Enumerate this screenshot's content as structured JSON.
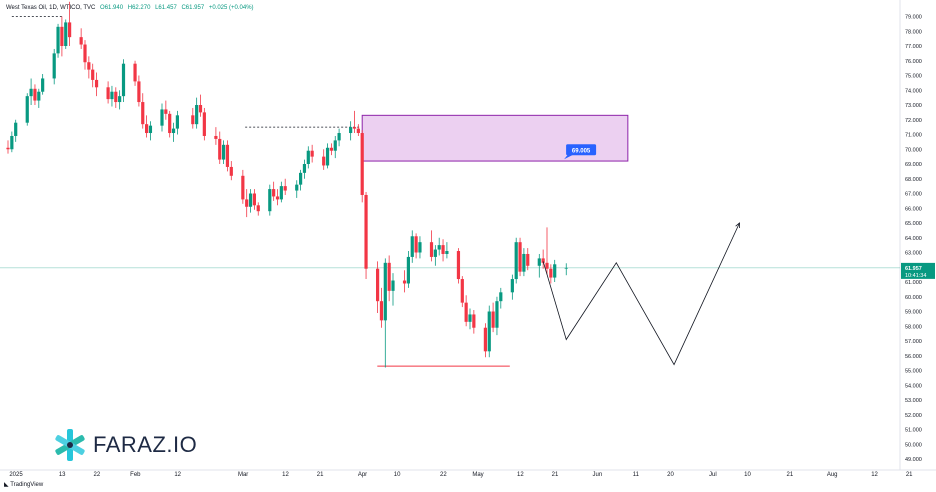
{
  "header": {
    "symbol": "West Texas Oil, 1D, WTICO, TVC",
    "open": "O61.940",
    "high": "H62.270",
    "low": "L61.457",
    "close": "C61.957",
    "change": "+0.025 (+0.04%)"
  },
  "price_axis": {
    "current_price": "61.957",
    "countdown": "10:41:34",
    "zone_label": "69.005"
  },
  "branding": {
    "logo_text": "FARAZ.IO",
    "tradingview": "TradingView"
  },
  "colors": {
    "up": "#089981",
    "down": "#f23645",
    "zone_fill": "#e9c8ef",
    "zone_border": "#8e24aa",
    "label_blue": "#2962ff"
  },
  "chart_data": {
    "type": "candlestick",
    "ylim": [
      48.5,
      79.5
    ],
    "y_ticks": [
      "49.000",
      "50.000",
      "51.000",
      "52.000",
      "53.000",
      "54.000",
      "55.000",
      "56.000",
      "57.000",
      "58.000",
      "59.000",
      "60.000",
      "61.000",
      "62.000",
      "63.000",
      "64.000",
      "65.000",
      "66.000",
      "67.000",
      "68.000",
      "69.000",
      "70.000",
      "71.000",
      "72.000",
      "73.000",
      "74.000",
      "75.000",
      "76.000",
      "77.000",
      "78.000",
      "79.000"
    ],
    "x_labels": [
      {
        "label": "2025",
        "day": 0
      },
      {
        "label": "13",
        "day": 12
      },
      {
        "label": "22",
        "day": 21
      },
      {
        "label": "Feb",
        "day": 31
      },
      {
        "label": "12",
        "day": 42
      },
      {
        "label": "Mar",
        "day": 59
      },
      {
        "label": "12",
        "day": 70
      },
      {
        "label": "21",
        "day": 79
      },
      {
        "label": "Apr",
        "day": 90
      },
      {
        "label": "10",
        "day": 99
      },
      {
        "label": "22",
        "day": 111
      },
      {
        "label": "May",
        "day": 120
      },
      {
        "label": "12",
        "day": 131
      },
      {
        "label": "21",
        "day": 140
      },
      {
        "label": "Jun",
        "day": 151
      },
      {
        "label": "11",
        "day": 161
      },
      {
        "label": "20",
        "day": 170
      },
      {
        "label": "Jul",
        "day": 181
      },
      {
        "label": "10",
        "day": 190
      },
      {
        "label": "21",
        "day": 201
      },
      {
        "label": "Aug",
        "day": 212
      },
      {
        "label": "12",
        "day": 223
      },
      {
        "label": "21",
        "day": 232
      }
    ],
    "candles": [
      {
        "day": 0,
        "o": 70.1,
        "h": 70.6,
        "l": 69.7,
        "c": 70.0
      },
      {
        "day": 1,
        "o": 70.0,
        "h": 71.2,
        "l": 69.8,
        "c": 70.9
      },
      {
        "day": 2,
        "o": 70.9,
        "h": 72.0,
        "l": 70.5,
        "c": 71.8
      },
      {
        "day": 5,
        "o": 71.8,
        "h": 73.8,
        "l": 71.6,
        "c": 73.6
      },
      {
        "day": 6,
        "o": 73.6,
        "h": 74.8,
        "l": 73.0,
        "c": 74.1
      },
      {
        "day": 7,
        "o": 74.1,
        "h": 74.4,
        "l": 73.0,
        "c": 73.3
      },
      {
        "day": 8,
        "o": 73.3,
        "h": 74.1,
        "l": 72.8,
        "c": 73.9
      },
      {
        "day": 9,
        "o": 73.9,
        "h": 75.1,
        "l": 73.7,
        "c": 74.8
      },
      {
        "day": 12,
        "o": 74.8,
        "h": 76.8,
        "l": 74.4,
        "c": 76.5
      },
      {
        "day": 13,
        "o": 76.5,
        "h": 78.5,
        "l": 76.2,
        "c": 78.3
      },
      {
        "day": 14,
        "o": 78.3,
        "h": 79.0,
        "l": 76.3,
        "c": 77.0
      },
      {
        "day": 15,
        "o": 77.0,
        "h": 78.8,
        "l": 76.8,
        "c": 78.6
      },
      {
        "day": 16,
        "o": 78.6,
        "h": 80.0,
        "l": 77.0,
        "c": 77.6
      },
      {
        "day": 19,
        "o": 77.6,
        "h": 78.2,
        "l": 76.8,
        "c": 77.1
      },
      {
        "day": 20,
        "o": 77.1,
        "h": 77.4,
        "l": 75.4,
        "c": 75.9
      },
      {
        "day": 21,
        "o": 75.9,
        "h": 76.3,
        "l": 74.8,
        "c": 75.4
      },
      {
        "day": 22,
        "o": 75.4,
        "h": 75.8,
        "l": 74.2,
        "c": 74.7
      },
      {
        "day": 23,
        "o": 74.7,
        "h": 75.2,
        "l": 73.6,
        "c": 74.2
      },
      {
        "day": 26,
        "o": 74.2,
        "h": 74.6,
        "l": 73.1,
        "c": 73.4
      },
      {
        "day": 27,
        "o": 73.4,
        "h": 74.3,
        "l": 72.9,
        "c": 73.9
      },
      {
        "day": 28,
        "o": 73.9,
        "h": 74.2,
        "l": 72.8,
        "c": 73.2
      },
      {
        "day": 29,
        "o": 73.2,
        "h": 74.0,
        "l": 72.7,
        "c": 73.6
      },
      {
        "day": 30,
        "o": 73.6,
        "h": 76.1,
        "l": 73.2,
        "c": 75.8
      },
      {
        "day": 33,
        "o": 75.8,
        "h": 76.0,
        "l": 74.3,
        "c": 74.6
      },
      {
        "day": 34,
        "o": 74.6,
        "h": 75.0,
        "l": 72.9,
        "c": 73.2
      },
      {
        "day": 35,
        "o": 73.2,
        "h": 73.8,
        "l": 71.4,
        "c": 71.7
      },
      {
        "day": 36,
        "o": 71.7,
        "h": 72.3,
        "l": 70.8,
        "c": 71.1
      },
      {
        "day": 37,
        "o": 71.1,
        "h": 71.9,
        "l": 70.6,
        "c": 71.6
      },
      {
        "day": 40,
        "o": 71.6,
        "h": 73.1,
        "l": 71.2,
        "c": 72.7
      },
      {
        "day": 41,
        "o": 72.7,
        "h": 73.3,
        "l": 72.0,
        "c": 72.4
      },
      {
        "day": 42,
        "o": 72.4,
        "h": 72.6,
        "l": 70.8,
        "c": 71.1
      },
      {
        "day": 43,
        "o": 71.1,
        "h": 71.8,
        "l": 70.5,
        "c": 71.4
      },
      {
        "day": 44,
        "o": 71.4,
        "h": 72.6,
        "l": 71.0,
        "c": 72.3
      },
      {
        "day": 48,
        "o": 72.3,
        "h": 72.8,
        "l": 71.4,
        "c": 71.7
      },
      {
        "day": 49,
        "o": 71.7,
        "h": 73.5,
        "l": 71.4,
        "c": 73.0
      },
      {
        "day": 50,
        "o": 73.0,
        "h": 73.7,
        "l": 72.2,
        "c": 72.5
      },
      {
        "day": 51,
        "o": 72.5,
        "h": 72.8,
        "l": 70.6,
        "c": 70.9
      },
      {
        "day": 54,
        "o": 70.9,
        "h": 71.5,
        "l": 70.3,
        "c": 70.7
      },
      {
        "day": 55,
        "o": 70.7,
        "h": 71.2,
        "l": 69.0,
        "c": 69.3
      },
      {
        "day": 56,
        "o": 69.3,
        "h": 70.6,
        "l": 69.0,
        "c": 70.3
      },
      {
        "day": 57,
        "o": 70.3,
        "h": 70.6,
        "l": 68.5,
        "c": 68.8
      },
      {
        "day": 58,
        "o": 68.8,
        "h": 69.2,
        "l": 67.9,
        "c": 68.2
      },
      {
        "day": 61,
        "o": 68.2,
        "h": 68.6,
        "l": 66.3,
        "c": 66.6
      },
      {
        "day": 62,
        "o": 66.6,
        "h": 67.3,
        "l": 65.4,
        "c": 66.1
      },
      {
        "day": 63,
        "o": 66.1,
        "h": 67.3,
        "l": 65.7,
        "c": 67.0
      },
      {
        "day": 64,
        "o": 67.0,
        "h": 67.3,
        "l": 65.9,
        "c": 66.2
      },
      {
        "day": 65,
        "o": 66.2,
        "h": 66.4,
        "l": 65.5,
        "c": 65.8
      },
      {
        "day": 68,
        "o": 65.8,
        "h": 67.6,
        "l": 65.5,
        "c": 67.3
      },
      {
        "day": 69,
        "o": 67.3,
        "h": 67.8,
        "l": 66.5,
        "c": 66.8
      },
      {
        "day": 70,
        "o": 66.8,
        "h": 67.3,
        "l": 66.2,
        "c": 66.6
      },
      {
        "day": 71,
        "o": 66.6,
        "h": 67.8,
        "l": 66.4,
        "c": 67.5
      },
      {
        "day": 72,
        "o": 67.5,
        "h": 68.0,
        "l": 66.9,
        "c": 67.2
      },
      {
        "day": 75,
        "o": 67.2,
        "h": 67.9,
        "l": 66.7,
        "c": 67.6
      },
      {
        "day": 76,
        "o": 67.6,
        "h": 68.6,
        "l": 67.2,
        "c": 68.4
      },
      {
        "day": 77,
        "o": 68.4,
        "h": 69.3,
        "l": 68.0,
        "c": 69.0
      },
      {
        "day": 78,
        "o": 69.0,
        "h": 70.2,
        "l": 68.7,
        "c": 69.9
      },
      {
        "day": 79,
        "o": 69.9,
        "h": 70.3,
        "l": 69.1,
        "c": 69.5
      },
      {
        "day": 82,
        "o": 69.5,
        "h": 70.0,
        "l": 68.6,
        "c": 68.9
      },
      {
        "day": 83,
        "o": 68.9,
        "h": 70.4,
        "l": 68.7,
        "c": 70.1
      },
      {
        "day": 84,
        "o": 70.1,
        "h": 70.4,
        "l": 69.6,
        "c": 69.9
      },
      {
        "day": 85,
        "o": 69.9,
        "h": 70.9,
        "l": 69.4,
        "c": 70.6
      },
      {
        "day": 86,
        "o": 70.6,
        "h": 71.4,
        "l": 70.2,
        "c": 71.1
      },
      {
        "day": 89,
        "o": 71.1,
        "h": 71.9,
        "l": 70.6,
        "c": 71.5
      },
      {
        "day": 90,
        "o": 71.5,
        "h": 72.6,
        "l": 71.1,
        "c": 71.4
      },
      {
        "day": 91,
        "o": 71.4,
        "h": 71.7,
        "l": 70.9,
        "c": 71.1
      },
      {
        "day": 92,
        "o": 71.1,
        "h": 71.3,
        "l": 66.4,
        "c": 66.9
      },
      {
        "day": 93,
        "o": 66.9,
        "h": 67.1,
        "l": 61.2,
        "c": 61.9
      },
      {
        "day": 96,
        "o": 61.9,
        "h": 62.4,
        "l": 58.9,
        "c": 59.7
      },
      {
        "day": 97,
        "o": 59.7,
        "h": 60.6,
        "l": 57.9,
        "c": 58.4
      },
      {
        "day": 98,
        "o": 58.4,
        "h": 62.6,
        "l": 55.2,
        "c": 62.3
      },
      {
        "day": 99,
        "o": 62.3,
        "h": 62.8,
        "l": 59.7,
        "c": 60.4
      },
      {
        "day": 100,
        "o": 60.4,
        "h": 61.6,
        "l": 59.4,
        "c": 61.1
      },
      {
        "day": 103,
        "o": 61.1,
        "h": 61.8,
        "l": 60.3,
        "c": 60.9
      },
      {
        "day": 104,
        "o": 60.9,
        "h": 63.1,
        "l": 60.6,
        "c": 62.7
      },
      {
        "day": 105,
        "o": 62.7,
        "h": 64.5,
        "l": 62.3,
        "c": 64.1
      },
      {
        "day": 106,
        "o": 64.1,
        "h": 64.3,
        "l": 62.6,
        "c": 63.0
      },
      {
        "day": 107,
        "o": 63.0,
        "h": 64.1,
        "l": 62.6,
        "c": 63.7
      },
      {
        "day": 110,
        "o": 63.7,
        "h": 64.5,
        "l": 62.4,
        "c": 62.7
      },
      {
        "day": 111,
        "o": 62.7,
        "h": 63.5,
        "l": 62.1,
        "c": 63.2
      },
      {
        "day": 112,
        "o": 63.2,
        "h": 64.0,
        "l": 62.8,
        "c": 63.5
      },
      {
        "day": 113,
        "o": 63.5,
        "h": 63.9,
        "l": 62.4,
        "c": 62.9
      },
      {
        "day": 114,
        "o": 62.9,
        "h": 63.7,
        "l": 62.6,
        "c": 63.1
      },
      {
        "day": 117,
        "o": 63.1,
        "h": 63.3,
        "l": 60.9,
        "c": 61.2
      },
      {
        "day": 118,
        "o": 61.2,
        "h": 61.4,
        "l": 59.3,
        "c": 59.6
      },
      {
        "day": 119,
        "o": 59.6,
        "h": 60.1,
        "l": 58.0,
        "c": 58.3
      },
      {
        "day": 120,
        "o": 58.3,
        "h": 59.2,
        "l": 57.8,
        "c": 58.8
      },
      {
        "day": 121,
        "o": 58.8,
        "h": 59.1,
        "l": 57.5,
        "c": 57.9
      },
      {
        "day": 124,
        "o": 57.9,
        "h": 58.2,
        "l": 55.9,
        "c": 56.3
      },
      {
        "day": 125,
        "o": 56.3,
        "h": 59.4,
        "l": 55.9,
        "c": 59.0
      },
      {
        "day": 126,
        "o": 59.0,
        "h": 59.6,
        "l": 57.6,
        "c": 57.9
      },
      {
        "day": 127,
        "o": 57.9,
        "h": 60.0,
        "l": 57.4,
        "c": 59.7
      },
      {
        "day": 128,
        "o": 59.7,
        "h": 60.6,
        "l": 59.2,
        "c": 60.3
      },
      {
        "day": 131,
        "o": 60.3,
        "h": 61.5,
        "l": 59.8,
        "c": 61.2
      },
      {
        "day": 132,
        "o": 61.2,
        "h": 64.0,
        "l": 60.9,
        "c": 63.7
      },
      {
        "day": 133,
        "o": 63.7,
        "h": 64.0,
        "l": 61.4,
        "c": 61.7
      },
      {
        "day": 134,
        "o": 61.7,
        "h": 63.3,
        "l": 61.4,
        "c": 62.9
      },
      {
        "day": 135,
        "o": 62.9,
        "h": 63.3,
        "l": 61.8,
        "c": 62.1
      },
      {
        "day": 138,
        "o": 62.1,
        "h": 62.9,
        "l": 61.3,
        "c": 62.6
      },
      {
        "day": 139,
        "o": 62.6,
        "h": 63.2,
        "l": 61.9,
        "c": 62.3
      },
      {
        "day": 140,
        "o": 62.3,
        "h": 64.7,
        "l": 61.5,
        "c": 61.9
      },
      {
        "day": 141,
        "o": 61.9,
        "h": 62.2,
        "l": 60.9,
        "c": 61.3
      },
      {
        "day": 142,
        "o": 61.3,
        "h": 62.5,
        "l": 61.0,
        "c": 62.2
      },
      {
        "day": 145,
        "o": 61.94,
        "h": 62.27,
        "l": 61.46,
        "c": 61.96
      }
    ],
    "annotations": {
      "supply_zone": {
        "day_start": 92,
        "day_end": 161,
        "price_low": 69.2,
        "price_high": 72.3,
        "label": "69.005",
        "label_day": 146
      },
      "dashed_line": {
        "price": 71.5,
        "day_start": 59,
        "day_end": 90
      },
      "top_dashed_line": {
        "price": 79.0,
        "day_start": 1,
        "day_end": 14
      },
      "low_line": {
        "price": 55.3,
        "day_start": 98,
        "day_end": 128
      },
      "projection": [
        {
          "day": 139,
          "price": 62.4
        },
        {
          "day": 145,
          "price": 57.1
        },
        {
          "day": 158,
          "price": 62.3
        },
        {
          "day": 173,
          "price": 55.4
        },
        {
          "day": 190,
          "price": 65.0
        }
      ],
      "current_line": 61.957
    }
  }
}
